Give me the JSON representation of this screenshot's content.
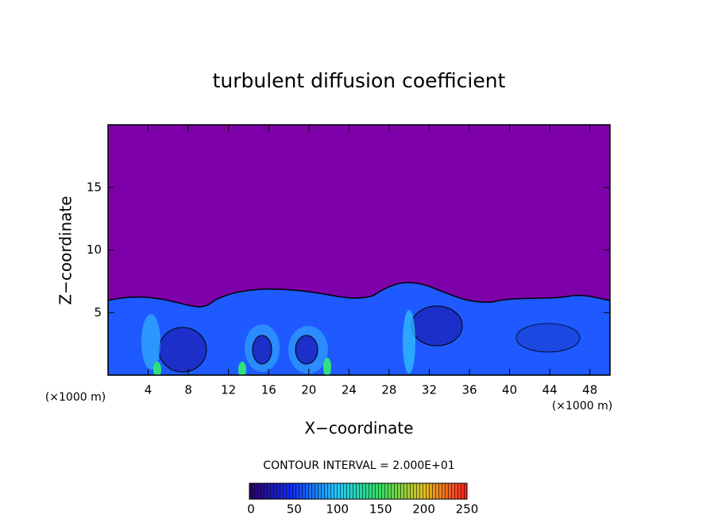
{
  "chart_data": {
    "type": "contour",
    "title": "turbulent diffusion coefficient",
    "x_label": "X−coordinate",
    "y_label": "Z−coordinate",
    "x_unit_left": "(×1000 m)",
    "x_unit_right": "(×1000 m)",
    "annotation": "CONTOUR INTERVAL = 2.000E+01",
    "xlim": [
      0,
      50
    ],
    "xticks": [
      4,
      8,
      12,
      16,
      20,
      24,
      28,
      32,
      36,
      40,
      44,
      48
    ],
    "ylim": [
      0,
      20
    ],
    "yticks": [
      5,
      10,
      15
    ],
    "colorbar": {
      "lim": [
        0,
        250
      ],
      "ticks": [
        0,
        50,
        100,
        150,
        200,
        250
      ]
    }
  }
}
